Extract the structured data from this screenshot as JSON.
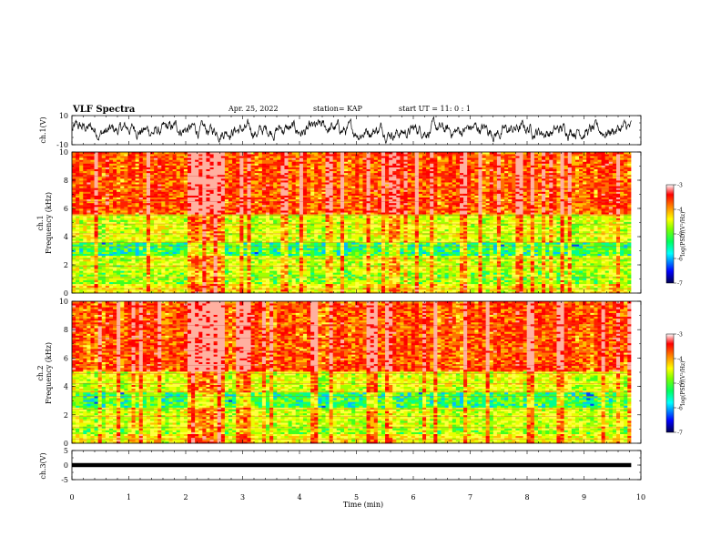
{
  "header": {
    "title": "VLF Spectra",
    "date": "Apr. 25, 2022",
    "station": "station= KAP",
    "start": "start  UT  =   11: 0  : 1"
  },
  "chart_data": [
    {
      "type": "line",
      "panel": "ch1-waveform",
      "ylabel": "ch.1(V)",
      "ylim": [
        -10,
        10
      ],
      "yticks": [
        "10",
        "-10"
      ],
      "xlim": [
        0,
        10
      ],
      "note": "noisy waveform oscillating roughly between -8 and +8 V over 0 to 9.8 min"
    },
    {
      "type": "heatmap",
      "panel": "ch1-spectrogram",
      "ylabel": "ch.1\nFrequency (kHz)",
      "ylim": [
        0,
        10
      ],
      "yticks": [
        "0",
        "2",
        "4",
        "6",
        "8",
        "10"
      ],
      "xlim": [
        0,
        10
      ],
      "data_extent_min": 9.83,
      "colorbar": {
        "label": "log(PSD)(V²/Hz)",
        "range": [
          -7,
          -3
        ],
        "ticks": [
          "-3",
          "-4",
          "-5",
          "-6",
          "-7"
        ]
      },
      "features": {
        "strong_band_kHz": [
          5.5,
          10
        ],
        "moderate_band_kHz": [
          1.5,
          5.5
        ],
        "quiet_band_kHz": [
          2.6,
          3.6
        ],
        "burst_interval_min": [
          2.0,
          2.65
        ]
      }
    },
    {
      "type": "heatmap",
      "panel": "ch2-spectrogram",
      "ylabel": "ch.2\nFrequency (kHz)",
      "ylim": [
        0,
        10
      ],
      "yticks": [
        "0",
        "2",
        "4",
        "6",
        "8",
        "10"
      ],
      "xlim": [
        0,
        10
      ],
      "data_extent_min": 9.83,
      "colorbar": {
        "label": "log(PSD)(V²/Hz)",
        "range": [
          -7,
          -3
        ],
        "ticks": [
          "-3",
          "-4",
          "-5",
          "-6",
          "-7"
        ]
      },
      "features": {
        "strong_band_kHz": [
          5.0,
          10
        ],
        "moderate_band_kHz": [
          1.0,
          5.0
        ],
        "quiet_band_kHz": [
          2.5,
          3.6
        ],
        "burst_interval_min": [
          2.0,
          2.65
        ]
      }
    },
    {
      "type": "line",
      "panel": "ch3-waveform",
      "ylabel": "ch.3(V)",
      "ylim": [
        -5,
        5
      ],
      "yticks": [
        "5",
        "0",
        "-5"
      ],
      "xlim": [
        0,
        10
      ],
      "xticks": [
        "0",
        "1",
        "2",
        "3",
        "4",
        "5",
        "6",
        "7",
        "8",
        "9",
        "10"
      ],
      "xlabel": "Time  (min)",
      "note": "thick flat band near 0 V from 0 to 9.8 min"
    }
  ],
  "colors": {
    "colormap": [
      "#000080",
      "#0000ff",
      "#00d0ff",
      "#00ff80",
      "#80ff00",
      "#ffff00",
      "#ff8000",
      "#ff0000",
      "#ffffff"
    ],
    "axis": "#000000",
    "trace": "#000000"
  }
}
